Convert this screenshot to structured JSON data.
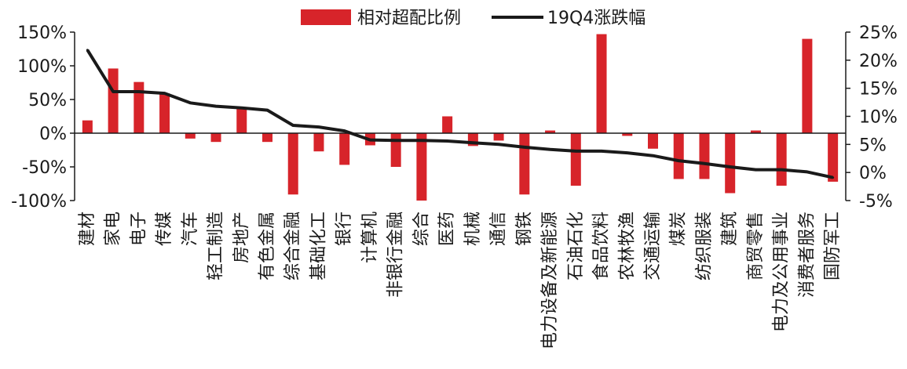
{
  "chart_data": {
    "type": "bar",
    "categories": [
      "建材",
      "家电",
      "电子",
      "传媒",
      "汽车",
      "轻工制造",
      "房地产",
      "有色金属",
      "综合金融",
      "基础化工",
      "银行",
      "计算机",
      "非银行金融",
      "综合",
      "医药",
      "机械",
      "通信",
      "钢铁",
      "电力设备及新能源",
      "石油石化",
      "食品饮料",
      "农林牧渔",
      "交通运输",
      "煤炭",
      "纺织服装",
      "建筑",
      "商贸零售",
      "电力及公用事业",
      "消费者服务",
      "国防军工"
    ],
    "series": [
      {
        "name": "相对超配比例",
        "type": "bar",
        "axis": "left",
        "color": "#d7242a",
        "values": [
          19,
          96,
          76,
          59,
          -8,
          -13,
          38,
          -13,
          -91,
          -27,
          -47,
          -18,
          -50,
          -100,
          25,
          -19,
          -11,
          -91,
          4,
          -78,
          147,
          -4,
          -23,
          -68,
          -68,
          -89,
          4,
          -78,
          140,
          -72
        ]
      },
      {
        "name": "19Q4涨跌幅",
        "type": "line",
        "axis": "right",
        "color": "#1a1a1a",
        "values": [
          21.8,
          14.4,
          14.4,
          14.1,
          12.4,
          11.8,
          11.5,
          11.1,
          8.4,
          8.1,
          7.4,
          5.8,
          5.7,
          5.7,
          5.6,
          5.3,
          5.0,
          4.5,
          4.1,
          3.8,
          3.8,
          3.5,
          3.0,
          2.1,
          1.6,
          1.0,
          0.5,
          0.5,
          0.1,
          -0.9
        ]
      }
    ],
    "y_left": {
      "min": -100,
      "max": 150,
      "ticks": [
        150,
        100,
        50,
        0,
        -50,
        -100
      ],
      "tick_labels": [
        "150%",
        "100%",
        "50%",
        "0%",
        "-50%",
        "-100%"
      ]
    },
    "y_right": {
      "min": -5,
      "max": 25,
      "ticks": [
        25,
        20,
        15,
        10,
        5,
        0,
        -5
      ],
      "tick_labels": [
        "25%",
        "20%",
        "15%",
        "10%",
        "5%",
        "0%",
        "-5%"
      ]
    },
    "legend": {
      "placement": "top-center",
      "entries": [
        "相对超配比例",
        "19Q4涨跌幅"
      ]
    },
    "grid": false
  }
}
